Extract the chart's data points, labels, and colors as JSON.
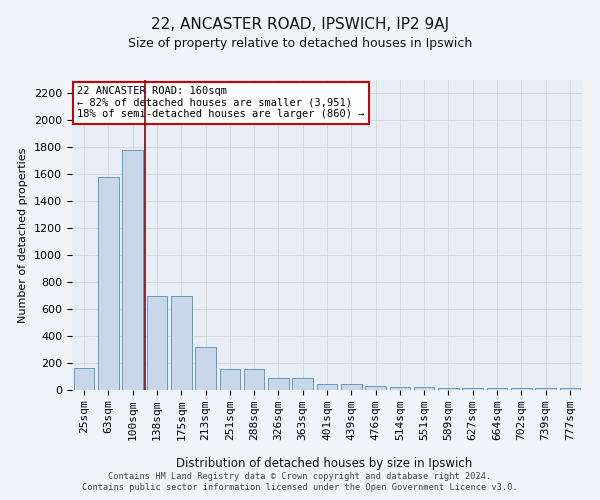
{
  "title": "22, ANCASTER ROAD, IPSWICH, IP2 9AJ",
  "subtitle": "Size of property relative to detached houses in Ipswich",
  "xlabel": "Distribution of detached houses by size in Ipswich",
  "ylabel": "Number of detached properties",
  "bar_color": "#c8d8ea",
  "bar_edge_color": "#6699bb",
  "background_color": "#e8eef5",
  "fig_background": "#f0f4f8",
  "categories": [
    "25sqm",
    "63sqm",
    "100sqm",
    "138sqm",
    "175sqm",
    "213sqm",
    "251sqm",
    "288sqm",
    "326sqm",
    "363sqm",
    "401sqm",
    "439sqm",
    "476sqm",
    "514sqm",
    "551sqm",
    "589sqm",
    "627sqm",
    "664sqm",
    "702sqm",
    "739sqm",
    "777sqm"
  ],
  "values": [
    160,
    1580,
    1780,
    700,
    700,
    320,
    158,
    158,
    88,
    88,
    48,
    48,
    28,
    20,
    20,
    12,
    12,
    12,
    12,
    12,
    12
  ],
  "ylim": [
    0,
    2300
  ],
  "yticks": [
    0,
    200,
    400,
    600,
    800,
    1000,
    1200,
    1400,
    1600,
    1800,
    2000,
    2200
  ],
  "vline_x": 2.5,
  "vline_color": "#8b0000",
  "annotation_text": "22 ANCASTER ROAD: 160sqm\n← 82% of detached houses are smaller (3,951)\n18% of semi-detached houses are larger (860) →",
  "footer_line1": "Contains HM Land Registry data © Crown copyright and database right 2024.",
  "footer_line2": "Contains public sector information licensed under the Open Government Licence v3.0.",
  "grid_color": "#cccccc",
  "annotation_box_color": "#ffffff",
  "annotation_box_edge": "#cc0000",
  "title_fontsize": 11,
  "subtitle_fontsize": 9,
  "ylabel_fontsize": 8,
  "xlabel_fontsize": 8.5,
  "tick_fontsize": 8,
  "annot_fontsize": 7.5,
  "footer_fontsize": 6.2
}
